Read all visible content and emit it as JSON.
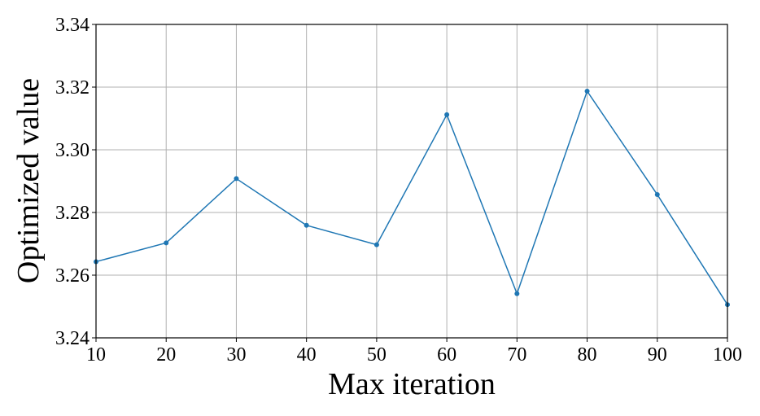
{
  "chart_data": {
    "type": "line",
    "title": "",
    "xlabel": "Max iteration",
    "ylabel": "Optimized value",
    "xlim": [
      10,
      100
    ],
    "ylim": [
      3.24,
      3.34
    ],
    "xticks": [
      "10",
      "20",
      "30",
      "40",
      "50",
      "60",
      "70",
      "80",
      "90",
      "100"
    ],
    "yticks": [
      "3.24",
      "3.26",
      "3.28",
      "3.30",
      "3.32",
      "3.34"
    ],
    "grid": true,
    "series": [
      {
        "color": "#1f77b4",
        "marker": "dot",
        "x": [
          10,
          20,
          30,
          40,
          50,
          60,
          70,
          80,
          90,
          100
        ],
        "y": [
          3.2643,
          3.2703,
          3.2908,
          3.2759,
          3.2697,
          3.3112,
          3.2541,
          3.3187,
          3.2857,
          3.2506
        ]
      }
    ]
  }
}
